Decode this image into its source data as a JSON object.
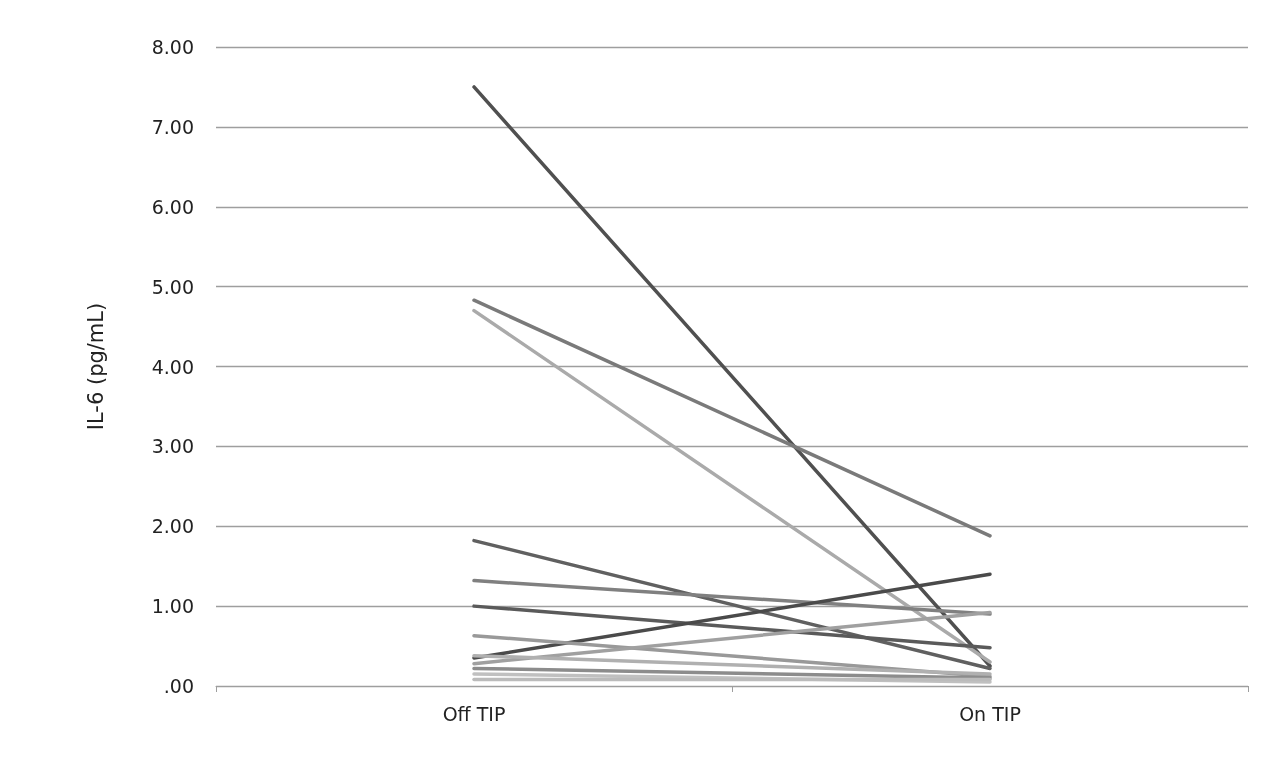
{
  "chart_data": {
    "type": "line",
    "ylabel": "IL-6 (pg/mL)",
    "categories": [
      "Off TIP",
      "On TIP"
    ],
    "ylim": [
      0,
      8
    ],
    "yticks": [
      {
        "value": 0,
        "label": ".00"
      },
      {
        "value": 1,
        "label": "1.00"
      },
      {
        "value": 2,
        "label": "2.00"
      },
      {
        "value": 3,
        "label": "3.00"
      },
      {
        "value": 4,
        "label": "4.00"
      },
      {
        "value": 5,
        "label": "5.00"
      },
      {
        "value": 6,
        "label": "6.00"
      },
      {
        "value": 7,
        "label": "7.00"
      },
      {
        "value": 8,
        "label": "8.00"
      }
    ],
    "grid": "y",
    "marker": "none",
    "line_style": "solid",
    "series": [
      {
        "color": "#505050",
        "values": [
          7.5,
          0.25
        ]
      },
      {
        "color": "#7a7a7a",
        "values": [
          4.83,
          1.88
        ]
      },
      {
        "color": "#aaaaaa",
        "values": [
          4.7,
          0.3
        ]
      },
      {
        "color": "#606060",
        "values": [
          1.82,
          0.22
        ]
      },
      {
        "color": "#808080",
        "values": [
          1.32,
          0.9
        ]
      },
      {
        "color": "#5a5a5a",
        "values": [
          1.0,
          0.48
        ]
      },
      {
        "color": "#4a4a4a",
        "values": [
          0.35,
          1.4
        ]
      },
      {
        "color": "#999999",
        "values": [
          0.63,
          0.12
        ]
      },
      {
        "color": "#a0a0a0",
        "values": [
          0.28,
          0.92
        ]
      },
      {
        "color": "#b0b0b0",
        "values": [
          0.38,
          0.15
        ]
      },
      {
        "color": "#8c8c8c",
        "values": [
          0.22,
          0.1
        ]
      },
      {
        "color": "#c0c0c0",
        "values": [
          0.15,
          0.05
        ]
      },
      {
        "color": "#bbbbbb",
        "values": [
          0.08,
          0.08
        ]
      }
    ]
  }
}
